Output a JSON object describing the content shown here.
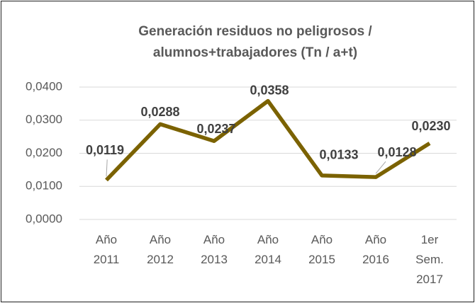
{
  "chart_data": {
    "type": "line",
    "title": [
      "Generación residuos no peligrosos /",
      "alumnos+trabajadores (Tn / a+t)"
    ],
    "categories": [
      "Año 2011",
      "Año 2012",
      "Año 2013",
      "Año 2014",
      "Año 2015",
      "Año 2016",
      "1er Sem. 2017"
    ],
    "values": [
      0.0119,
      0.0288,
      0.0237,
      0.0358,
      0.0133,
      0.0128,
      0.023
    ],
    "value_labels": [
      "0,0119",
      "0,0288",
      "0,0237",
      "0,0358",
      "0,0133",
      "0,0128",
      "0,0230"
    ],
    "color": "#7b6200",
    "ylim": [
      0,
      0.04
    ],
    "yticks": [
      {
        "value": 0,
        "label": "0,0000"
      },
      {
        "value": 0.01,
        "label": "0,0100"
      },
      {
        "value": 0.02,
        "label": "0,0200"
      },
      {
        "value": 0.03,
        "label": "0,0300"
      },
      {
        "value": 0.04,
        "label": "0,0400"
      }
    ],
    "grid": true
  }
}
